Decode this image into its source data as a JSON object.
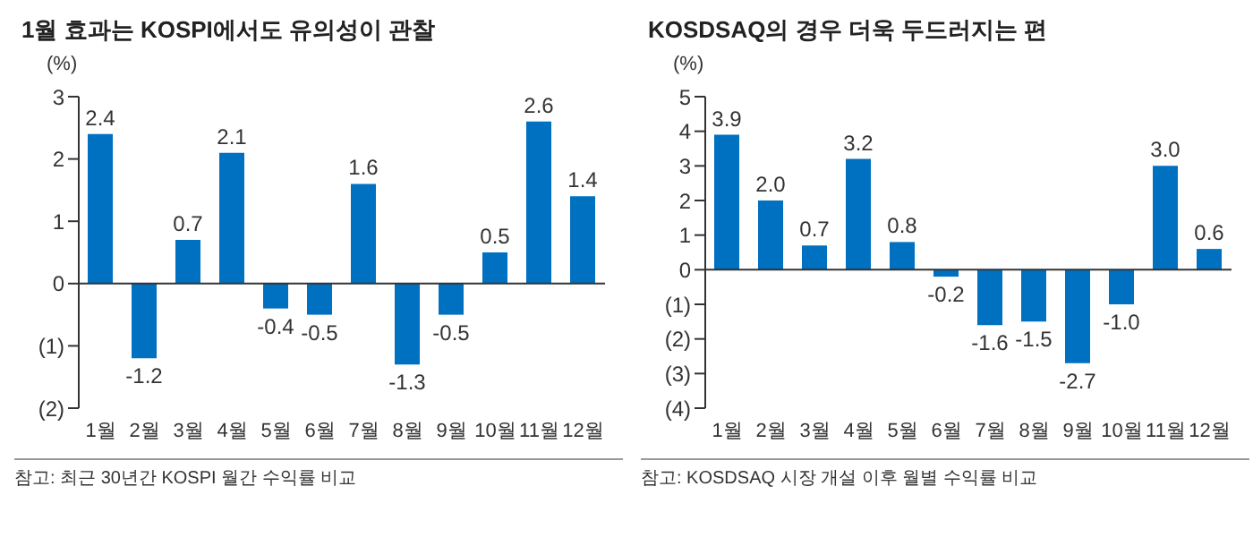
{
  "chart_data": [
    {
      "type": "bar",
      "title": "1월 효과는 KOSPI에서도 유의성이 관찰",
      "ylabel": "(%)",
      "categories": [
        "1월",
        "2월",
        "3월",
        "4월",
        "5월",
        "6월",
        "7월",
        "8월",
        "9월",
        "10월",
        "11월",
        "12월"
      ],
      "series": [
        {
          "color": "#0070c0",
          "values": [
            2.4,
            -1.2,
            0.7,
            2.1,
            -0.4,
            -0.5,
            1.6,
            -1.3,
            -0.5,
            0.5,
            2.6,
            1.4
          ],
          "value_labels": [
            "2.4",
            "-1.2",
            "0.7",
            "2.1",
            "-0.4",
            "-0.5",
            "1.6",
            "-1.3",
            "-0.5",
            "0.5",
            "2.6",
            "1.4"
          ]
        }
      ],
      "ylim": [
        -2,
        3
      ],
      "yticks": [
        {
          "value": -2,
          "label": "(2)"
        },
        {
          "value": -1,
          "label": "(1)"
        },
        0,
        1,
        2,
        3
      ],
      "annotations": [
        "참고: 최근 30년간 KOSPI 월간 수익률 비교"
      ]
    },
    {
      "type": "bar",
      "title": "KOSDSAQ의 경우 더욱 두드러지는 편",
      "ylabel": "(%)",
      "categories": [
        "1월",
        "2월",
        "3월",
        "4월",
        "5월",
        "6월",
        "7월",
        "8월",
        "9월",
        "10월",
        "11월",
        "12월"
      ],
      "series": [
        {
          "color": "#0070c0",
          "values": [
            3.9,
            2.0,
            0.7,
            3.2,
            0.8,
            -0.2,
            -1.6,
            -1.5,
            -2.7,
            -1.0,
            3.0,
            0.6
          ],
          "value_labels": [
            "3.9",
            "2.0",
            "0.7",
            "3.2",
            "0.8",
            "-0.2",
            "-1.6",
            "-1.5",
            "-2.7",
            "-1.0",
            "3.0",
            "0.6"
          ]
        }
      ],
      "ylim": [
        -4,
        5
      ],
      "yticks": [
        {
          "value": -4,
          "label": "(4)"
        },
        {
          "value": -3,
          "label": "(3)"
        },
        {
          "value": -2,
          "label": "(2)"
        },
        {
          "value": -1,
          "label": "(1)"
        },
        0,
        1,
        2,
        3,
        4,
        5
      ],
      "annotations": [
        "참고: KOSDSAQ 시장 개설 이후 월별 수익률 비교"
      ]
    }
  ]
}
